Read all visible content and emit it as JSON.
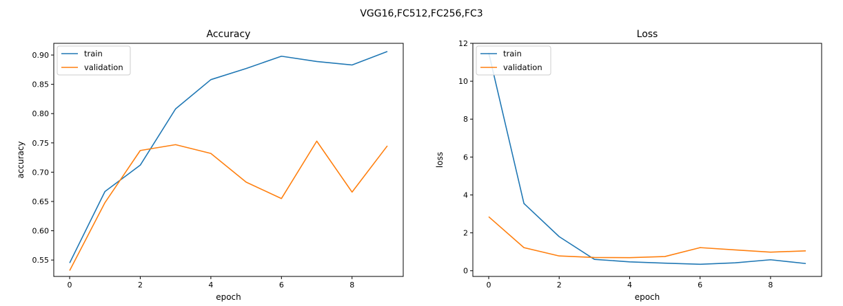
{
  "figure": {
    "suptitle": "VGG16,FC512,FC256,FC3"
  },
  "chart_data": [
    {
      "type": "line",
      "title": "Accuracy",
      "xlabel": "epoch",
      "ylabel": "accuracy",
      "x": [
        0,
        1,
        2,
        3,
        4,
        5,
        6,
        7,
        8,
        9
      ],
      "xlim": [
        -0.45,
        9.45
      ],
      "ylim": [
        0.522,
        0.92
      ],
      "xticks": [
        "0",
        "2",
        "4",
        "6",
        "8"
      ],
      "yticks": [
        "0.55",
        "0.60",
        "0.65",
        "0.70",
        "0.75",
        "0.80",
        "0.85",
        "0.90"
      ],
      "grid": false,
      "legend": "upper left",
      "series": [
        {
          "name": "train",
          "color": "#1f77b4",
          "values": [
            0.545,
            0.667,
            0.712,
            0.808,
            0.858,
            0.877,
            0.898,
            0.889,
            0.883,
            0.906
          ]
        },
        {
          "name": "validation",
          "color": "#ff7f0e",
          "values": [
            0.532,
            0.648,
            0.737,
            0.747,
            0.732,
            0.683,
            0.655,
            0.753,
            0.666,
            0.745
          ]
        }
      ]
    },
    {
      "type": "line",
      "title": "Loss",
      "xlabel": "epoch",
      "ylabel": "loss",
      "x": [
        0,
        1,
        2,
        3,
        4,
        5,
        6,
        7,
        8,
        9
      ],
      "xlim": [
        -0.45,
        9.45
      ],
      "ylim": [
        -0.3,
        12.0
      ],
      "xticks": [
        "0",
        "2",
        "4",
        "6",
        "8"
      ],
      "yticks": [
        "0",
        "2",
        "4",
        "6",
        "8",
        "10",
        "12"
      ],
      "grid": false,
      "legend": "upper left",
      "series": [
        {
          "name": "train",
          "color": "#1f77b4",
          "values": [
            11.5,
            3.55,
            1.8,
            0.6,
            0.47,
            0.4,
            0.34,
            0.42,
            0.58,
            0.38
          ]
        },
        {
          "name": "validation",
          "color": "#ff7f0e",
          "values": [
            2.85,
            1.22,
            0.78,
            0.7,
            0.69,
            0.75,
            1.22,
            1.1,
            0.98,
            1.05
          ]
        }
      ]
    }
  ]
}
